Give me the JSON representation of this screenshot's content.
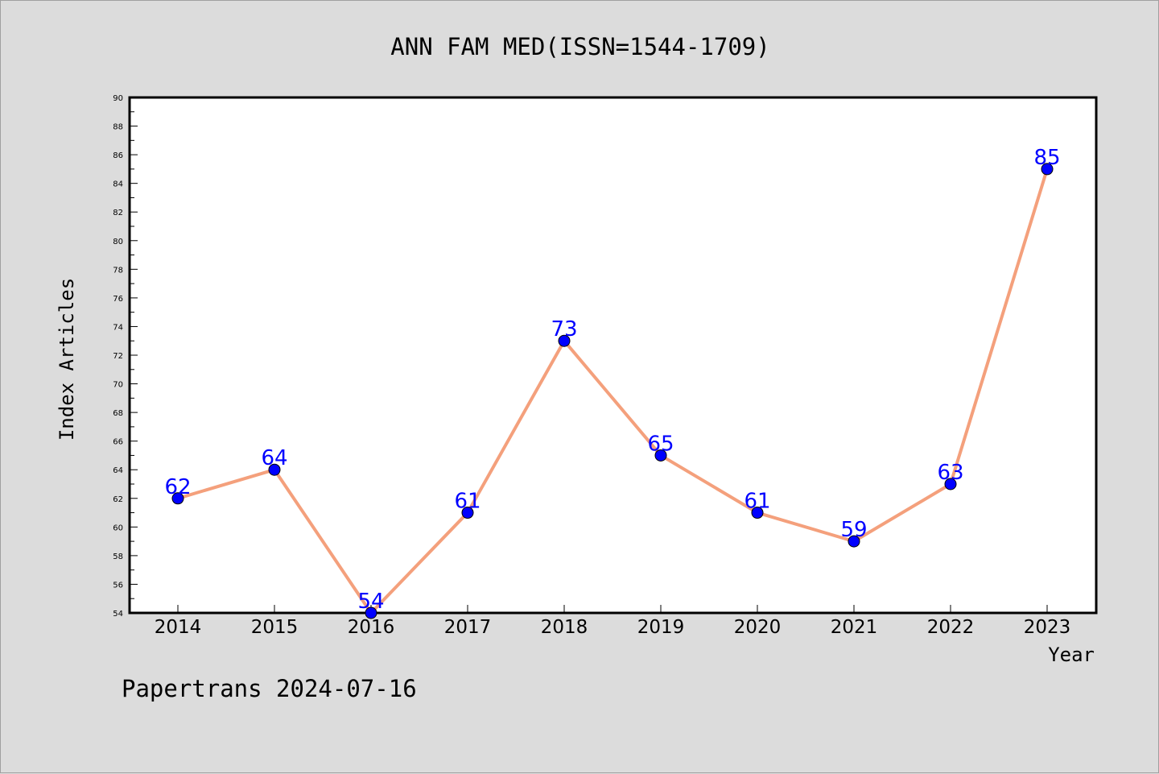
{
  "chart_data": {
    "type": "line",
    "title": "ANN FAM MED(ISSN=1544-1709)",
    "xlabel": "Year",
    "ylabel": "Index Articles",
    "categories": [
      "2014",
      "2015",
      "2016",
      "2017",
      "2018",
      "2019",
      "2020",
      "2021",
      "2022",
      "2023"
    ],
    "series": [
      {
        "values": [
          62,
          64,
          54,
          61,
          73,
          65,
          61,
          59,
          63,
          85
        ]
      }
    ],
    "ylim": [
      54,
      90
    ],
    "ytick_step": 2,
    "grid": false,
    "line_color": "#f4a07c",
    "marker_color": "#0000ff",
    "label_color": "#0000ff"
  },
  "footer": {
    "text": "Papertrans 2024-07-16"
  }
}
